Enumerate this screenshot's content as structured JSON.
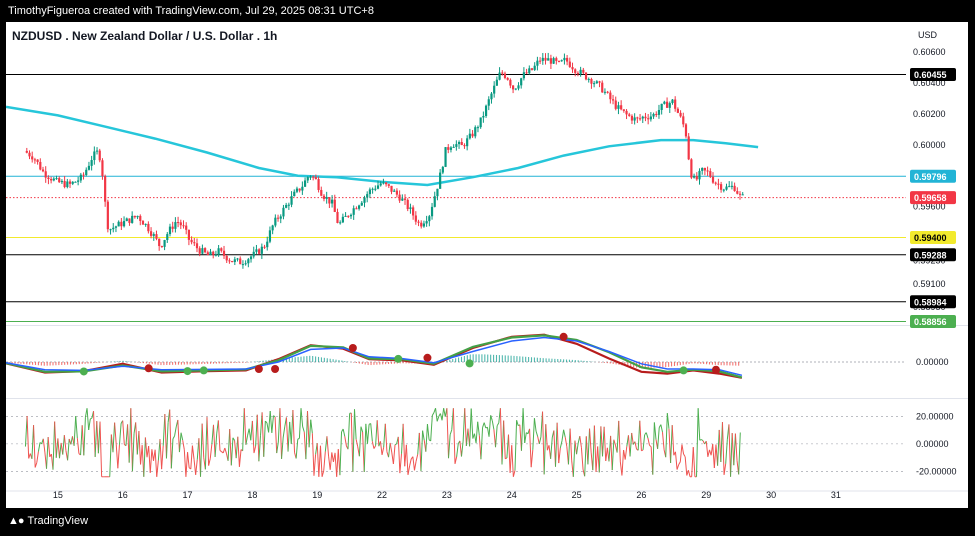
{
  "header": {
    "credit": "TimothyFigueroa created with TradingView.com, Jul 29, 2025 08:31 UTC+8"
  },
  "footer": {
    "brand": "TradingView",
    "logo_icon": "tradingview-logo-icon"
  },
  "chart_data": {
    "type": "candlestick",
    "title": "NZDUSD . New Zealand Dollar / U.S. Dollar . 1h",
    "currency": "USD",
    "price_axis": {
      "ticks": [
        "0.60600",
        "0.60400",
        "0.60200",
        "0.60000",
        "0.59800",
        "0.59600",
        "0.59400",
        "0.59250",
        "0.59100",
        "0.58950"
      ],
      "tick_values": [
        0.606,
        0.604,
        0.602,
        0.6,
        0.598,
        0.596,
        0.594,
        0.5925,
        0.591,
        0.5895
      ],
      "range": [
        0.5884,
        0.6073
      ]
    },
    "x_axis": {
      "labels": [
        "15",
        "16",
        "17",
        "18",
        "19",
        "22",
        "23",
        "24",
        "25",
        "26",
        "29",
        "30",
        "31"
      ],
      "label_positions": [
        0.5,
        1.5,
        2.5,
        3.5,
        4.5,
        5.5,
        6.5,
        7.5,
        8.5,
        9.5,
        10.5,
        11.5,
        12.5
      ],
      "range": [
        -0.3,
        13.55
      ]
    },
    "price_lines": [
      {
        "value": 0.60455,
        "label": "0.60455",
        "line_color": "#000000",
        "tag_color": "#000000",
        "text_color": "#ffffff"
      },
      {
        "value": 0.59796,
        "label": "0.59796",
        "line_color": "#22b4d6",
        "tag_color": "#22b4d6",
        "text_color": "#ffffff"
      },
      {
        "value": 0.59658,
        "label": "0.59658",
        "line_color": "#f23645",
        "tag_color": "#f23645",
        "text_color": "#ffffff",
        "dotted": true
      },
      {
        "value": 0.594,
        "label": "0.59400",
        "line_color": "#f2ea2d",
        "tag_color": "#f2ea2d",
        "text_color": "#000000"
      },
      {
        "value": 0.59288,
        "label": "0.59288",
        "line_color": "#000000",
        "tag_color": "#000000",
        "text_color": "#ffffff"
      },
      {
        "value": 0.58984,
        "label": "0.58984",
        "line_color": "#000000",
        "tag_color": "#000000",
        "text_color": "#ffffff"
      },
      {
        "value": 0.58856,
        "label": "0.58856",
        "line_color": "#4caf50",
        "tag_color": "#4caf50",
        "text_color": "#ffffff"
      }
    ],
    "price_path": [
      [
        0.0,
        0.5996
      ],
      [
        0.15,
        0.5992
      ],
      [
        0.3,
        0.5982
      ],
      [
        0.5,
        0.5976
      ],
      [
        0.7,
        0.5974
      ],
      [
        0.9,
        0.5979
      ],
      [
        1.05,
        0.5992
      ],
      [
        1.15,
        0.5996
      ],
      [
        1.2,
        0.5985
      ],
      [
        1.25,
        0.5962
      ],
      [
        1.3,
        0.5945
      ],
      [
        1.45,
        0.5948
      ],
      [
        1.6,
        0.5951
      ],
      [
        1.75,
        0.5954
      ],
      [
        1.9,
        0.5947
      ],
      [
        2.0,
        0.5941
      ],
      [
        2.1,
        0.5934
      ],
      [
        2.2,
        0.5942
      ],
      [
        2.35,
        0.5951
      ],
      [
        2.45,
        0.5947
      ],
      [
        2.55,
        0.5938
      ],
      [
        2.7,
        0.5932
      ],
      [
        2.85,
        0.5928
      ],
      [
        3.0,
        0.5931
      ],
      [
        3.2,
        0.5925
      ],
      [
        3.35,
        0.5924
      ],
      [
        3.55,
        0.5929
      ],
      [
        3.7,
        0.5934
      ],
      [
        3.85,
        0.5949
      ],
      [
        4.0,
        0.5958
      ],
      [
        4.15,
        0.5967
      ],
      [
        4.3,
        0.5974
      ],
      [
        4.4,
        0.5981
      ],
      [
        4.5,
        0.5977
      ],
      [
        4.6,
        0.5968
      ],
      [
        4.75,
        0.5962
      ],
      [
        4.85,
        0.5948
      ],
      [
        5.0,
        0.5955
      ],
      [
        5.2,
        0.5964
      ],
      [
        5.35,
        0.5971
      ],
      [
        5.5,
        0.5975
      ],
      [
        5.6,
        0.5973
      ],
      [
        5.8,
        0.5966
      ],
      [
        5.95,
        0.5958
      ],
      [
        6.1,
        0.5948
      ],
      [
        6.25,
        0.5955
      ],
      [
        6.4,
        0.5977
      ],
      [
        6.5,
        0.5996
      ],
      [
        6.6,
        0.6001
      ],
      [
        6.75,
        0.5999
      ],
      [
        6.9,
        0.6006
      ],
      [
        7.05,
        0.6016
      ],
      [
        7.2,
        0.6032
      ],
      [
        7.35,
        0.6047
      ],
      [
        7.45,
        0.6044
      ],
      [
        7.55,
        0.6036
      ],
      [
        7.7,
        0.6045
      ],
      [
        7.85,
        0.6049
      ],
      [
        7.95,
        0.6055
      ],
      [
        8.1,
        0.6055
      ],
      [
        8.25,
        0.6052
      ],
      [
        8.35,
        0.6055
      ],
      [
        8.5,
        0.6049
      ],
      [
        8.6,
        0.6046
      ],
      [
        8.75,
        0.6042
      ],
      [
        8.9,
        0.6037
      ],
      [
        9.05,
        0.6029
      ],
      [
        9.15,
        0.6024
      ],
      [
        9.3,
        0.6019
      ],
      [
        9.45,
        0.6016
      ],
      [
        9.55,
        0.6018
      ],
      [
        9.7,
        0.6019
      ],
      [
        9.85,
        0.6025
      ],
      [
        10.0,
        0.6028
      ],
      [
        10.08,
        0.6021
      ],
      [
        10.16,
        0.6014
      ],
      [
        10.22,
        0.6005
      ],
      [
        10.27,
        0.5983
      ],
      [
        10.35,
        0.5976
      ],
      [
        10.45,
        0.5983
      ],
      [
        10.55,
        0.5982
      ],
      [
        10.65,
        0.5976
      ],
      [
        10.8,
        0.5972
      ],
      [
        10.95,
        0.5973
      ],
      [
        11.05,
        0.5966
      ]
    ],
    "ma": {
      "color": "#26c6da",
      "points": [
        [
          -0.3,
          0.60245
        ],
        [
          0.5,
          0.6019
        ],
        [
          1.2,
          0.6012
        ],
        [
          2.0,
          0.6004
        ],
        [
          2.8,
          0.5995
        ],
        [
          3.6,
          0.5985
        ],
        [
          4.2,
          0.598
        ],
        [
          4.8,
          0.5979
        ],
        [
          5.5,
          0.5976
        ],
        [
          6.2,
          0.5974
        ],
        [
          6.9,
          0.5979
        ],
        [
          7.6,
          0.5985
        ],
        [
          8.3,
          0.5993
        ],
        [
          9.0,
          0.5999
        ],
        [
          9.8,
          0.6003
        ],
        [
          10.3,
          0.6003
        ],
        [
          10.8,
          0.6001
        ],
        [
          11.3,
          0.59985
        ]
      ]
    },
    "momentum": {
      "zero_label": "0.00000",
      "range": [
        -1,
        1
      ],
      "line_green": [
        [
          -0.3,
          -0.03
        ],
        [
          0.3,
          -0.28
        ],
        [
          0.9,
          -0.27
        ],
        [
          1.5,
          -0.1
        ],
        [
          2.1,
          -0.27
        ],
        [
          2.8,
          -0.24
        ],
        [
          3.4,
          -0.21
        ],
        [
          3.9,
          0.05
        ],
        [
          4.4,
          0.46
        ],
        [
          4.9,
          0.42
        ],
        [
          5.3,
          0.1
        ],
        [
          5.8,
          0.08
        ],
        [
          6.3,
          -0.05
        ],
        [
          6.9,
          0.43
        ],
        [
          7.5,
          0.7
        ],
        [
          8.0,
          0.76
        ],
        [
          8.5,
          0.63
        ],
        [
          9.0,
          0.28
        ],
        [
          9.5,
          -0.15
        ],
        [
          9.9,
          -0.28
        ],
        [
          10.3,
          -0.22
        ],
        [
          10.7,
          -0.27
        ],
        [
          11.05,
          -0.44
        ]
      ],
      "line_blue": [
        [
          -0.3,
          -0.02
        ],
        [
          0.3,
          -0.22
        ],
        [
          0.9,
          -0.24
        ],
        [
          1.5,
          -0.12
        ],
        [
          2.1,
          -0.22
        ],
        [
          2.8,
          -0.21
        ],
        [
          3.4,
          -0.2
        ],
        [
          3.9,
          0.0
        ],
        [
          4.4,
          0.36
        ],
        [
          4.9,
          0.4
        ],
        [
          5.3,
          0.15
        ],
        [
          5.8,
          0.1
        ],
        [
          6.3,
          -0.02
        ],
        [
          6.9,
          0.3
        ],
        [
          7.5,
          0.6
        ],
        [
          8.0,
          0.7
        ],
        [
          8.5,
          0.6
        ],
        [
          9.0,
          0.3
        ],
        [
          9.5,
          -0.05
        ],
        [
          9.9,
          -0.2
        ],
        [
          10.3,
          -0.2
        ],
        [
          10.7,
          -0.22
        ],
        [
          11.05,
          -0.38
        ]
      ],
      "line_red": [
        [
          -0.3,
          -0.04
        ],
        [
          0.3,
          -0.3
        ],
        [
          0.9,
          -0.26
        ],
        [
          1.5,
          -0.05
        ],
        [
          2.1,
          -0.3
        ],
        [
          2.8,
          -0.26
        ],
        [
          3.4,
          -0.24
        ],
        [
          3.9,
          0.08
        ],
        [
          4.4,
          0.48
        ],
        [
          4.9,
          0.38
        ],
        [
          5.3,
          0.08
        ],
        [
          5.8,
          0.05
        ],
        [
          6.3,
          -0.08
        ],
        [
          6.9,
          0.4
        ],
        [
          7.5,
          0.72
        ],
        [
          8.0,
          0.78
        ],
        [
          8.5,
          0.52
        ],
        [
          9.0,
          0.1
        ],
        [
          9.5,
          -0.28
        ],
        [
          9.9,
          -0.33
        ],
        [
          10.3,
          -0.24
        ],
        [
          10.7,
          -0.33
        ],
        [
          11.05,
          -0.45
        ]
      ],
      "cross_dots": [
        {
          "x": 0.9,
          "y": -0.27,
          "color": "#4caf50"
        },
        {
          "x": 1.9,
          "y": -0.18,
          "color": "#b71c1c"
        },
        {
          "x": 2.5,
          "y": -0.26,
          "color": "#4caf50"
        },
        {
          "x": 2.75,
          "y": -0.24,
          "color": "#4caf50"
        },
        {
          "x": 3.6,
          "y": -0.2,
          "color": "#b71c1c"
        },
        {
          "x": 3.85,
          "y": -0.2,
          "color": "#b71c1c"
        },
        {
          "x": 5.05,
          "y": 0.4,
          "color": "#b71c1c"
        },
        {
          "x": 5.75,
          "y": 0.09,
          "color": "#4caf50"
        },
        {
          "x": 6.2,
          "y": 0.12,
          "color": "#b71c1c"
        },
        {
          "x": 6.85,
          "y": -0.04,
          "color": "#4caf50"
        },
        {
          "x": 8.3,
          "y": 0.72,
          "color": "#b71c1c"
        },
        {
          "x": 10.15,
          "y": -0.24,
          "color": "#4caf50"
        },
        {
          "x": 10.65,
          "y": -0.22,
          "color": "#b71c1c"
        }
      ]
    },
    "oscillator": {
      "ticks": [
        "20.00000",
        "0.00000",
        "-20.00000"
      ],
      "tick_values": [
        20,
        0,
        -20
      ],
      "range": [
        -30,
        32
      ]
    }
  }
}
